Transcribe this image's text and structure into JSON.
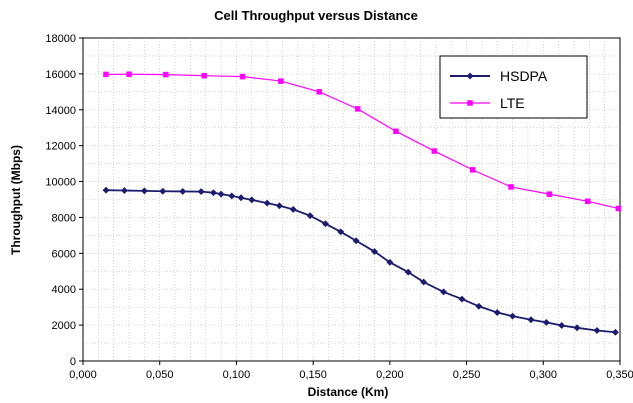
{
  "chart_data": {
    "type": "line",
    "title": "Cell Throughput versus Distance",
    "xlabel": "Distance (Km)",
    "ylabel": "Throughput  (Mbps)",
    "xlim": [
      0,
      0.35
    ],
    "ylim": [
      0,
      18000
    ],
    "x_ticks": [
      "0,000",
      "0,050",
      "0,100",
      "0,150",
      "0,200",
      "0,250",
      "0,300",
      "0,350"
    ],
    "y_ticks": [
      "0",
      "2000",
      "4000",
      "6000",
      "8000",
      "10000",
      "12000",
      "14000",
      "16000",
      "18000"
    ],
    "grid": true,
    "legend_position": "top-right",
    "series": [
      {
        "name": "HSDPA",
        "color": "#1c1c6e",
        "marker": "diamond",
        "points": [
          [
            0.015,
            9520
          ],
          [
            0.027,
            9500
          ],
          [
            0.04,
            9480
          ],
          [
            0.052,
            9460
          ],
          [
            0.065,
            9450
          ],
          [
            0.077,
            9440
          ],
          [
            0.085,
            9380
          ],
          [
            0.09,
            9300
          ],
          [
            0.097,
            9200
          ],
          [
            0.103,
            9100
          ],
          [
            0.11,
            8980
          ],
          [
            0.12,
            8800
          ],
          [
            0.128,
            8650
          ],
          [
            0.137,
            8450
          ],
          [
            0.148,
            8100
          ],
          [
            0.158,
            7650
          ],
          [
            0.168,
            7200
          ],
          [
            0.178,
            6700
          ],
          [
            0.19,
            6100
          ],
          [
            0.2,
            5500
          ],
          [
            0.212,
            4950
          ],
          [
            0.222,
            4400
          ],
          [
            0.235,
            3850
          ],
          [
            0.247,
            3450
          ],
          [
            0.258,
            3050
          ],
          [
            0.27,
            2700
          ],
          [
            0.28,
            2500
          ],
          [
            0.292,
            2300
          ],
          [
            0.302,
            2150
          ],
          [
            0.312,
            1980
          ],
          [
            0.322,
            1850
          ],
          [
            0.335,
            1700
          ],
          [
            0.347,
            1600
          ]
        ]
      },
      {
        "name": "LTE",
        "color": "#ff00ff",
        "marker": "square",
        "points": [
          [
            0.015,
            15970
          ],
          [
            0.03,
            15980
          ],
          [
            0.054,
            15960
          ],
          [
            0.079,
            15900
          ],
          [
            0.104,
            15850
          ],
          [
            0.129,
            15600
          ],
          [
            0.154,
            15000
          ],
          [
            0.179,
            14050
          ],
          [
            0.204,
            12800
          ],
          [
            0.229,
            11700
          ],
          [
            0.254,
            10650
          ],
          [
            0.279,
            9700
          ],
          [
            0.304,
            9300
          ],
          [
            0.329,
            8900
          ],
          [
            0.349,
            8500
          ]
        ]
      }
    ]
  }
}
